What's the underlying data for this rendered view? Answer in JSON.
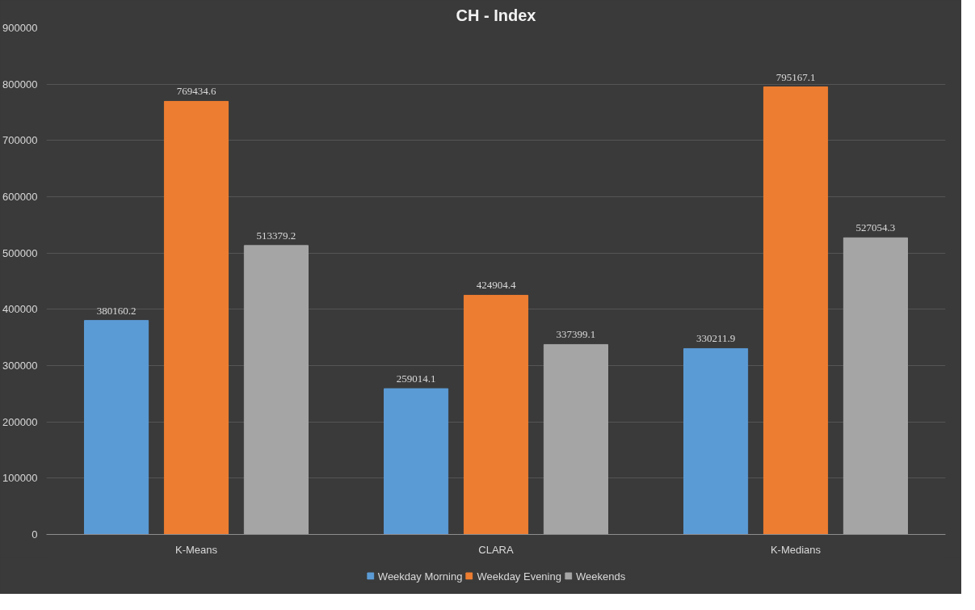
{
  "chart_data": {
    "type": "bar",
    "title": "CH - Index",
    "categories": [
      "K-Means",
      "CLARA",
      "K-Medians"
    ],
    "series": [
      {
        "name": "Weekday Morning",
        "color": "#5b9bd5",
        "values": [
          380160.2,
          259014.1,
          330211.9
        ]
      },
      {
        "name": "Weekday Evening",
        "color": "#ed7d31",
        "values": [
          769434.6,
          424904.4,
          795167.1
        ]
      },
      {
        "name": "Weekends",
        "color": "#a5a5a5",
        "values": [
          513379.2,
          337399.1,
          527054.3
        ]
      }
    ],
    "ylim": [
      0,
      900000
    ],
    "yticks": [
      0,
      100000,
      200000,
      300000,
      400000,
      500000,
      600000,
      700000,
      800000,
      900000
    ],
    "grid": "y",
    "legend": "bottom",
    "data_labels": true
  }
}
